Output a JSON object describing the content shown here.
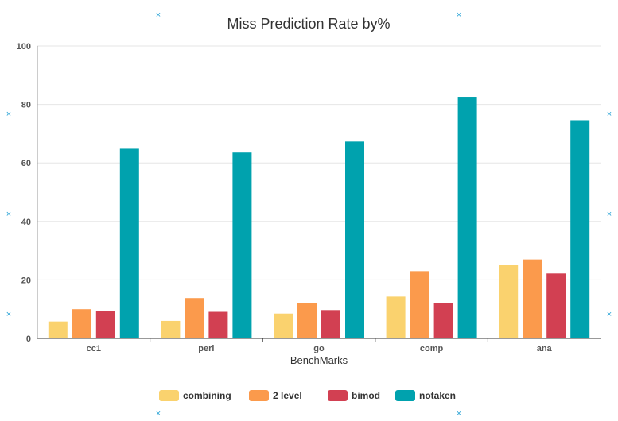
{
  "chart_data": {
    "type": "bar",
    "title": "Miss Prediction Rate by%",
    "xlabel": "BenchMarks",
    "ylabel": "",
    "ylim": [
      0,
      100
    ],
    "yticks": [
      0,
      20,
      40,
      60,
      80,
      100
    ],
    "categories": [
      "cc1",
      "perl",
      "go",
      "comp",
      "ana"
    ],
    "series": [
      {
        "name": "combining",
        "color": "#fad26e",
        "values": [
          5.8,
          6.0,
          8.5,
          14.3,
          25.0
        ]
      },
      {
        "name": "2 level",
        "color": "#fb9a4c",
        "values": [
          10.0,
          13.8,
          12.0,
          23.0,
          27.0
        ]
      },
      {
        "name": "bimod",
        "color": "#d24052",
        "values": [
          9.5,
          9.1,
          9.7,
          12.1,
          22.2
        ]
      },
      {
        "name": "notaken",
        "color": "#00a2ae",
        "values": [
          65.1,
          63.8,
          67.3,
          82.6,
          74.6
        ]
      }
    ],
    "grid": true,
    "legend": "bottom-center"
  }
}
